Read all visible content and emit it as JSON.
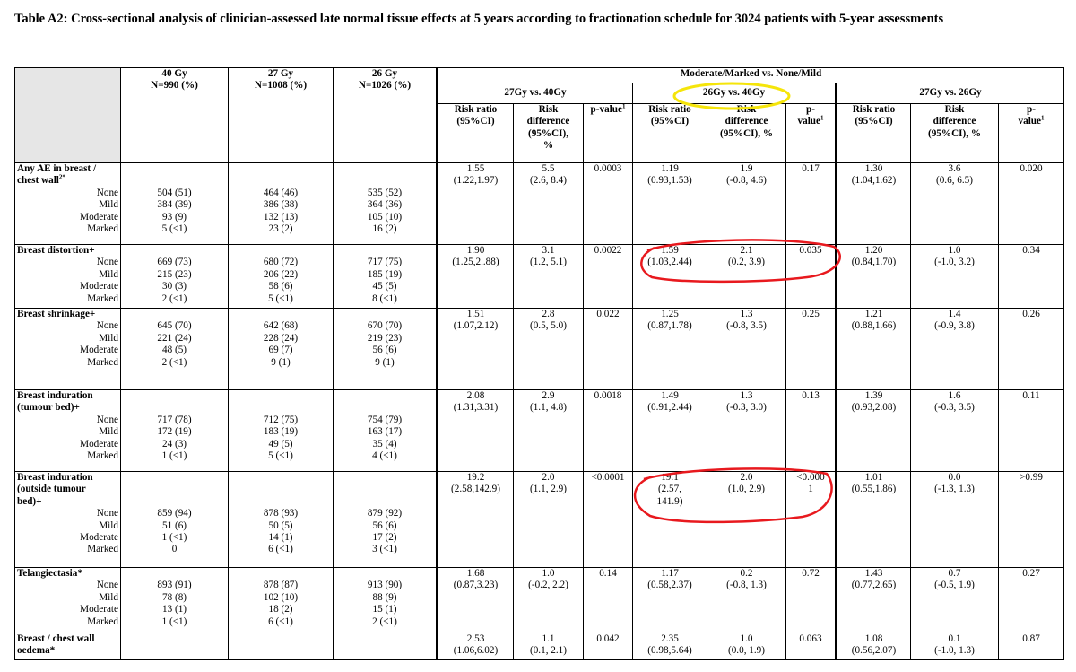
{
  "title": "Table A2: Cross-sectional analysis of clinician-assessed late normal tissue effects at 5 years according to fractionation schedule for 3024 patients with 5-year assessments",
  "headers": {
    "g40": [
      "40 Gy",
      "N=990 (%)"
    ],
    "g27": [
      "27 Gy",
      "N=1008 (%)"
    ],
    "g26": [
      "26 Gy",
      "N=1026 (%)"
    ],
    "group": "Moderate/Marked vs. None/Mild",
    "comparisons": [
      "27Gy vs. 40Gy",
      "26Gy vs. 40Gy",
      "27Gy vs. 26Gy"
    ],
    "cols_a": [
      "Risk ratio",
      "(95%CI)"
    ],
    "cols_b": [
      "Risk",
      "difference",
      "(95%CI),",
      "%"
    ],
    "cols_b2": [
      "Risk",
      "difference",
      "(95%CI), %"
    ],
    "cols_c": "p-value",
    "cols_c2": [
      "p-",
      "value"
    ],
    "sup1": "1"
  },
  "rows": [
    {
      "label": [
        "Any AE in breast /",
        "chest wall"
      ],
      "sup": "2*",
      "grades": [
        "None",
        "Mild",
        "Moderate",
        "Marked"
      ],
      "g40": [
        "504 (51)",
        "384 (39)",
        "93 (9)",
        "5 (<1)"
      ],
      "g27": [
        "464 (46)",
        "386 (38)",
        "132 (13)",
        "23 (2)"
      ],
      "g26": [
        "535 (52)",
        "364 (36)",
        "105 (10)",
        "16 (2)"
      ],
      "c1": [
        "1.55",
        "(1.22,1.97)",
        "5.5",
        "(2.6, 8.4)",
        "0.0003"
      ],
      "c2": [
        "1.19",
        "(0.93,1.53)",
        "1.9",
        "(-0.8, 4.6)",
        "0.17"
      ],
      "c3": [
        "1.30",
        "(1.04,1.62)",
        "3.6",
        "(0.6, 6.5)",
        "0.020"
      ]
    },
    {
      "label": [
        "Breast distortion+"
      ],
      "sup": "",
      "grades": [
        "None",
        "Mild",
        "Moderate",
        "Marked"
      ],
      "g40": [
        "669 (73)",
        "215 (23)",
        "30 (3)",
        "2 (<1)"
      ],
      "g27": [
        "680 (72)",
        "206 (22)",
        "58 (6)",
        "5 (<1)"
      ],
      "g26": [
        "717 (75)",
        "185 (19)",
        "45 (5)",
        "8 (<1)"
      ],
      "c1": [
        "1.90",
        "(1.25,2..88)",
        "3.1",
        "(1.2, 5.1)",
        "0.0022"
      ],
      "c2": [
        "1.59",
        "(1.03,2.44)",
        "2.1",
        "(0.2, 3.9)",
        "0.035"
      ],
      "c3": [
        "1.20",
        "(0.84,1.70)",
        "1.0",
        "(-1.0, 3.2)",
        "0.34"
      ]
    },
    {
      "label": [
        "Breast shrinkage+"
      ],
      "sup": "",
      "grades": [
        "None",
        "Mild",
        "Moderate",
        "Marked"
      ],
      "g40": [
        "645 (70)",
        "221 (24)",
        "48 (5)",
        "2 (<1)"
      ],
      "g27": [
        "642 (68)",
        "228 (24)",
        "69 (7)",
        "9 (1)"
      ],
      "g26": [
        "670 (70)",
        "219 (23)",
        "56 (6)",
        "9 (1)"
      ],
      "c1": [
        "1.51",
        "(1.07,2.12)",
        "2.8",
        "(0.5, 5.0)",
        "0.022"
      ],
      "c2": [
        "1.25",
        "(0.87,1.78)",
        "1.3",
        "(-0.8, 3.5)",
        "0.25"
      ],
      "c3": [
        "1.21",
        "(0.88,1.66)",
        "1.4",
        "(-0.9, 3.8)",
        "0.26"
      ]
    },
    {
      "label": [
        "Breast induration",
        "(tumour bed)+"
      ],
      "sup": "",
      "grades": [
        "None",
        "Mild",
        "Moderate",
        "Marked"
      ],
      "g40": [
        "717 (78)",
        "172 (19)",
        "24 (3)",
        "1 (<1)"
      ],
      "g27": [
        "712 (75)",
        "183 (19)",
        "49 (5)",
        "5 (<1)"
      ],
      "g26": [
        "754 (79)",
        "163 (17)",
        "35 (4)",
        "4 (<1)"
      ],
      "c1": [
        "2.08",
        "(1.31,3.31)",
        "2.9",
        "(1.1, 4.8)",
        "0.0018"
      ],
      "c2": [
        "1.49",
        "(0.91,2.44)",
        "1.3",
        "(-0.3, 3.0)",
        "0.13"
      ],
      "c3": [
        "1.39",
        "(0.93,2.08)",
        "1.6",
        "(-0.3, 3.5)",
        "0.11"
      ]
    },
    {
      "label": [
        "Breast induration",
        "(outside tumour",
        "bed)+"
      ],
      "sup": "",
      "grades": [
        "None",
        "Mild",
        "Moderate",
        "Marked"
      ],
      "g40": [
        "859 (94)",
        "51 (6)",
        "1 (<1)",
        "0"
      ],
      "g27": [
        "878 (93)",
        "50 (5)",
        "14 (1)",
        "6 (<1)"
      ],
      "g26": [
        "879 (92)",
        "56 (6)",
        "17 (2)",
        "3 (<1)"
      ],
      "c1": [
        "19.2",
        "(2.58,142.9)",
        "2.0",
        "(1.1, 2.9)",
        "<0.0001"
      ],
      "c2": [
        "19.1",
        "(2.57,",
        "141.9)",
        "2.0",
        "(1.0, 2.9)",
        "<0.000",
        "1"
      ],
      "c3": [
        "1.01",
        "(0.55,1.86)",
        "0.0",
        "(-1.3, 1.3)",
        ">0.99"
      ]
    },
    {
      "label": [
        "Telangiectasia*"
      ],
      "sup": "",
      "grades": [
        "None",
        "Mild",
        "Moderate",
        "Marked"
      ],
      "g40": [
        "893 (91)",
        "78 (8)",
        "13 (1)",
        "1 (<1)"
      ],
      "g27": [
        "878 (87)",
        "102 (10)",
        "18 (2)",
        "6 (<1)"
      ],
      "g26": [
        "913 (90)",
        "88 (9)",
        "15 (1)",
        "2 (<1)"
      ],
      "c1": [
        "1.68",
        "(0.87,3.23)",
        "1.0",
        "(-0.2, 2.2)",
        "0.14"
      ],
      "c2": [
        "1.17",
        "(0.58,2.37)",
        "0.2",
        "(-0.8, 1.3)",
        "0.72"
      ],
      "c3": [
        "1.43",
        "(0.77,2.65)",
        "0.7",
        "(-0.5, 1.9)",
        "0.27"
      ]
    },
    {
      "label": [
        "Breast / chest wall",
        "oedema*"
      ],
      "sup": "",
      "grades": [],
      "g40": [],
      "g27": [],
      "g26": [],
      "c1": [
        "2.53",
        "(1.06,6.02)",
        "1.1",
        "(0.1, 2.1)",
        "0.042"
      ],
      "c2": [
        "2.35",
        "(0.98,5.64)",
        "1.0",
        "(0.0, 1.9)",
        "0.063"
      ],
      "c3": [
        "1.08",
        "(0.56,2.07)",
        "0.1",
        "(-1.0, 1.3)",
        "0.87"
      ]
    }
  ],
  "annotation_colors": {
    "highlight": "#f5e50a",
    "circle": "#e8191e"
  }
}
